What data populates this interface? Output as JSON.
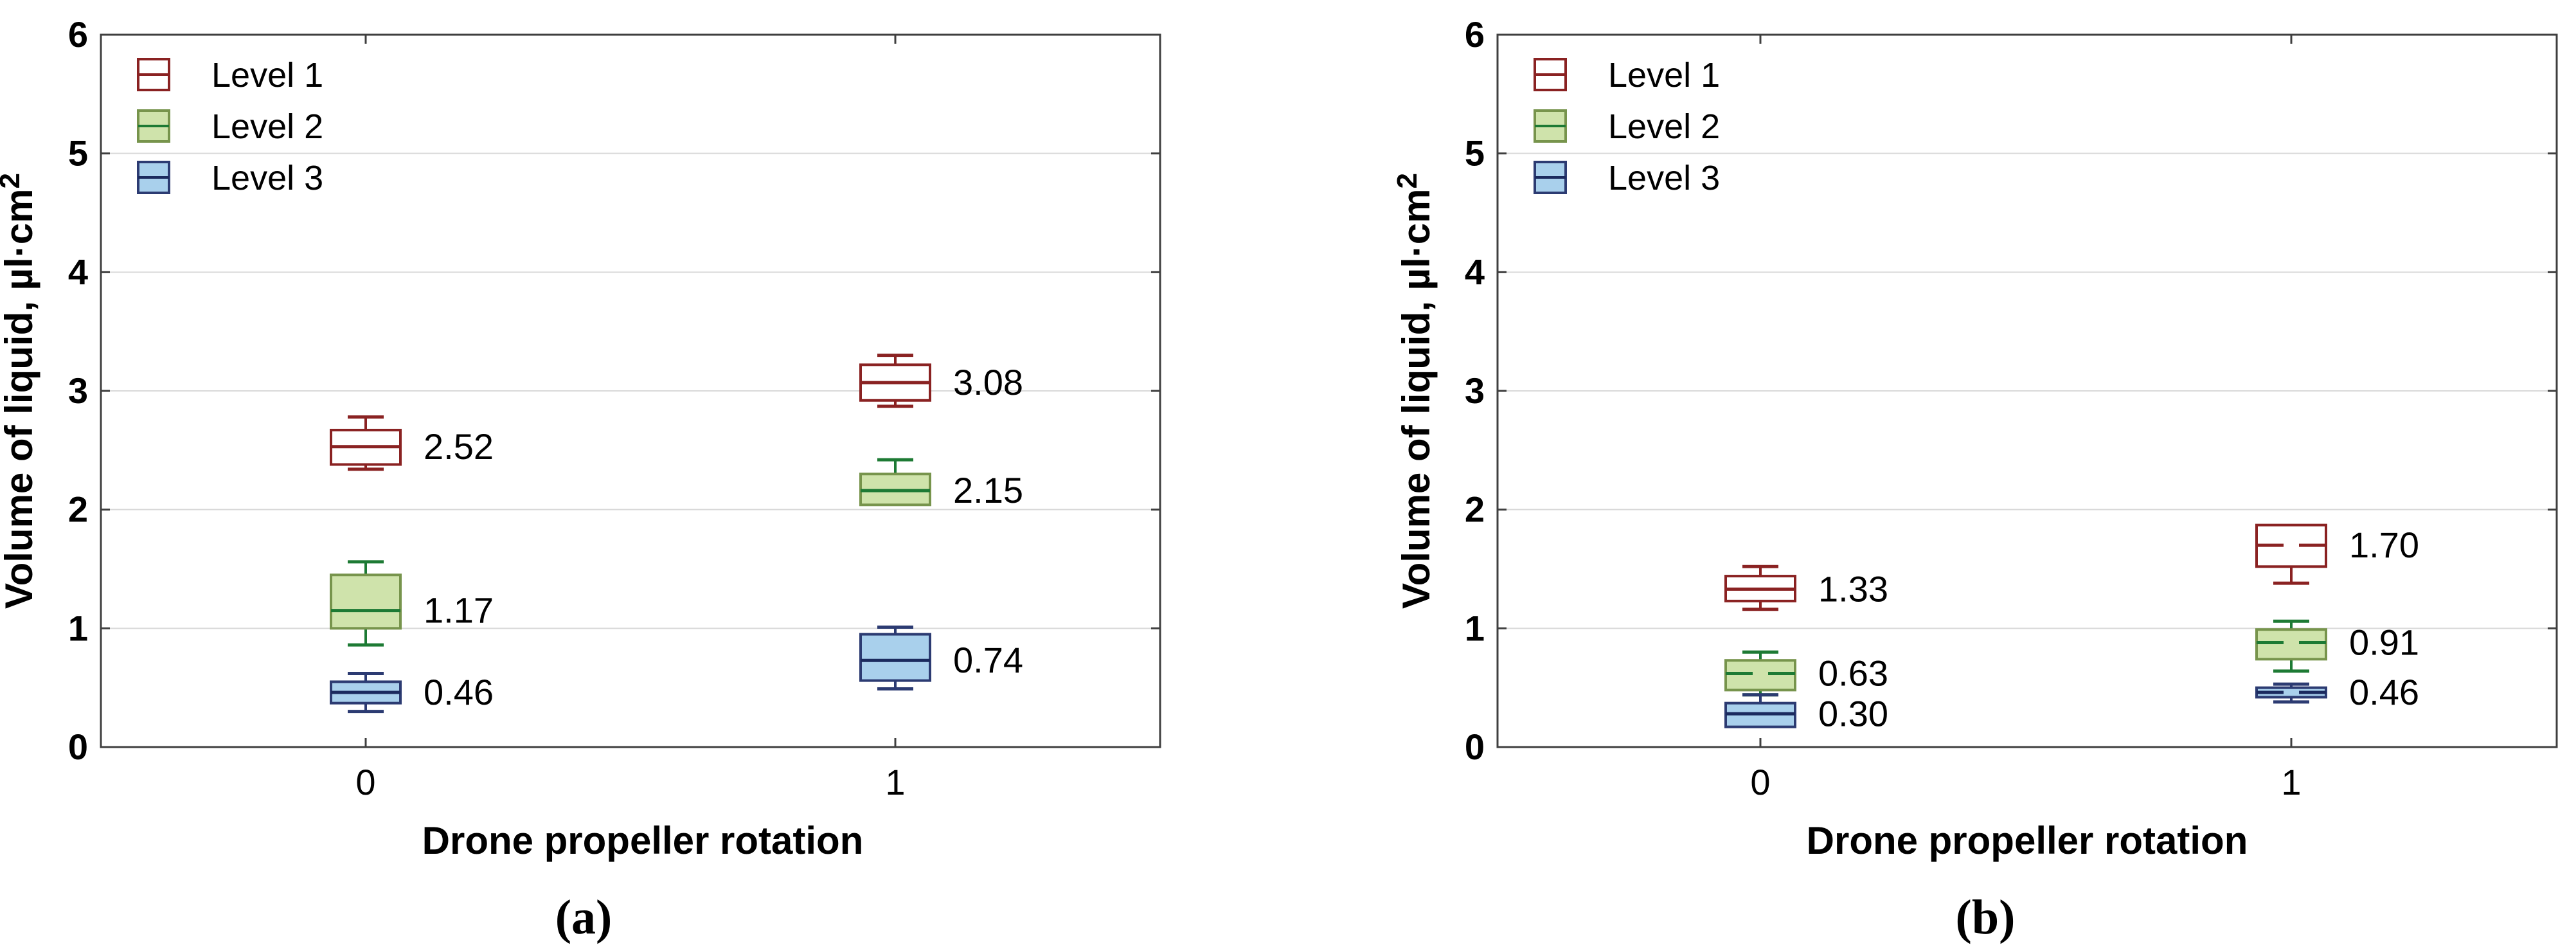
{
  "figure_colors": {
    "plot_border": "#3f3f3f",
    "gridline": "#d9d9d9",
    "text": "#000000",
    "background": "#ffffff"
  },
  "level_styles": {
    "level1": {
      "stroke": "#8a2222",
      "fill": "#ffffff",
      "median": "#8a2222",
      "whisker": "#8a2222"
    },
    "level2": {
      "stroke": "#77944c",
      "fill": "#cfe3ab",
      "median": "#1d7a34",
      "whisker": "#1d7a34"
    },
    "level3": {
      "stroke": "#2c3b72",
      "fill": "#a9d0ec",
      "median": "#1b2a5e",
      "whisker": "#2c3b72"
    }
  },
  "chart_data": [
    {
      "type": "box",
      "panel": "a",
      "caption": "(a)",
      "xlabel": "Drone propeller rotation",
      "ylabel": "Volume of liquid, µl·cm",
      "ylabel_sup": "2",
      "categories": [
        "0",
        "1"
      ],
      "ylim": [
        0,
        6
      ],
      "yticks": [
        0,
        1,
        2,
        3,
        4,
        5,
        6
      ],
      "grid": "horizontal",
      "legend_position": "top-left",
      "series": [
        {
          "name": "Level 1",
          "key": "level1",
          "boxes": [
            {
              "category": "0",
              "q1": 2.38,
              "median": 2.53,
              "q3": 2.67,
              "whisker_low": 2.34,
              "whisker_high": 2.78,
              "label": "2.52",
              "median_gap": false
            },
            {
              "category": "1",
              "q1": 2.92,
              "median": 3.07,
              "q3": 3.22,
              "whisker_low": 2.87,
              "whisker_high": 3.3,
              "label": "3.08",
              "median_gap": false
            }
          ]
        },
        {
          "name": "Level 2",
          "key": "level2",
          "boxes": [
            {
              "category": "0",
              "q1": 1.0,
              "median": 1.15,
              "q3": 1.45,
              "whisker_low": 0.86,
              "whisker_high": 1.56,
              "label": "1.17",
              "median_gap": false
            },
            {
              "category": "1",
              "q1": 2.04,
              "median": 2.16,
              "q3": 2.3,
              "whisker_low": null,
              "whisker_high": 2.42,
              "label": "2.15",
              "median_gap": false
            }
          ]
        },
        {
          "name": "Level 3",
          "key": "level3",
          "boxes": [
            {
              "category": "0",
              "q1": 0.37,
              "median": 0.46,
              "q3": 0.55,
              "whisker_low": 0.3,
              "whisker_high": 0.62,
              "label": "0.46",
              "median_gap": false
            },
            {
              "category": "1",
              "q1": 0.56,
              "median": 0.73,
              "q3": 0.95,
              "whisker_low": 0.49,
              "whisker_high": 1.01,
              "label": "0.74",
              "median_gap": false
            }
          ]
        }
      ]
    },
    {
      "type": "box",
      "panel": "b",
      "caption": "(b)",
      "xlabel": "Drone propeller rotation",
      "ylabel": "Volume of liquid, µl·cm",
      "ylabel_sup": "2",
      "categories": [
        "0",
        "1"
      ],
      "ylim": [
        0,
        6
      ],
      "yticks": [
        0,
        1,
        2,
        3,
        4,
        5,
        6
      ],
      "grid": "horizontal",
      "legend_position": "top-left",
      "series": [
        {
          "name": "Level 1",
          "key": "level1",
          "boxes": [
            {
              "category": "0",
              "q1": 1.23,
              "median": 1.33,
              "q3": 1.44,
              "whisker_low": 1.16,
              "whisker_high": 1.52,
              "label": "1.33",
              "median_gap": false
            },
            {
              "category": "1",
              "q1": 1.52,
              "median": 1.7,
              "q3": 1.87,
              "whisker_low": 1.38,
              "whisker_high": null,
              "label": "1.70",
              "median_gap": true
            }
          ]
        },
        {
          "name": "Level 2",
          "key": "level2",
          "boxes": [
            {
              "category": "0",
              "q1": 0.48,
              "median": 0.62,
              "q3": 0.73,
              "whisker_low": 0.44,
              "whisker_high": 0.8,
              "label": "0.63",
              "median_gap": true
            },
            {
              "category": "1",
              "q1": 0.74,
              "median": 0.88,
              "q3": 0.99,
              "whisker_low": 0.64,
              "whisker_high": 1.06,
              "label": "0.91",
              "median_gap": true
            }
          ]
        },
        {
          "name": "Level 3",
          "key": "level3",
          "boxes": [
            {
              "category": "0",
              "q1": 0.17,
              "median": 0.28,
              "q3": 0.37,
              "whisker_low": null,
              "whisker_high": 0.44,
              "label": "0.30",
              "median_gap": false
            },
            {
              "category": "1",
              "q1": 0.42,
              "median": 0.46,
              "q3": 0.5,
              "whisker_low": 0.38,
              "whisker_high": 0.53,
              "label": "0.46",
              "median_gap": true
            }
          ]
        }
      ]
    }
  ]
}
